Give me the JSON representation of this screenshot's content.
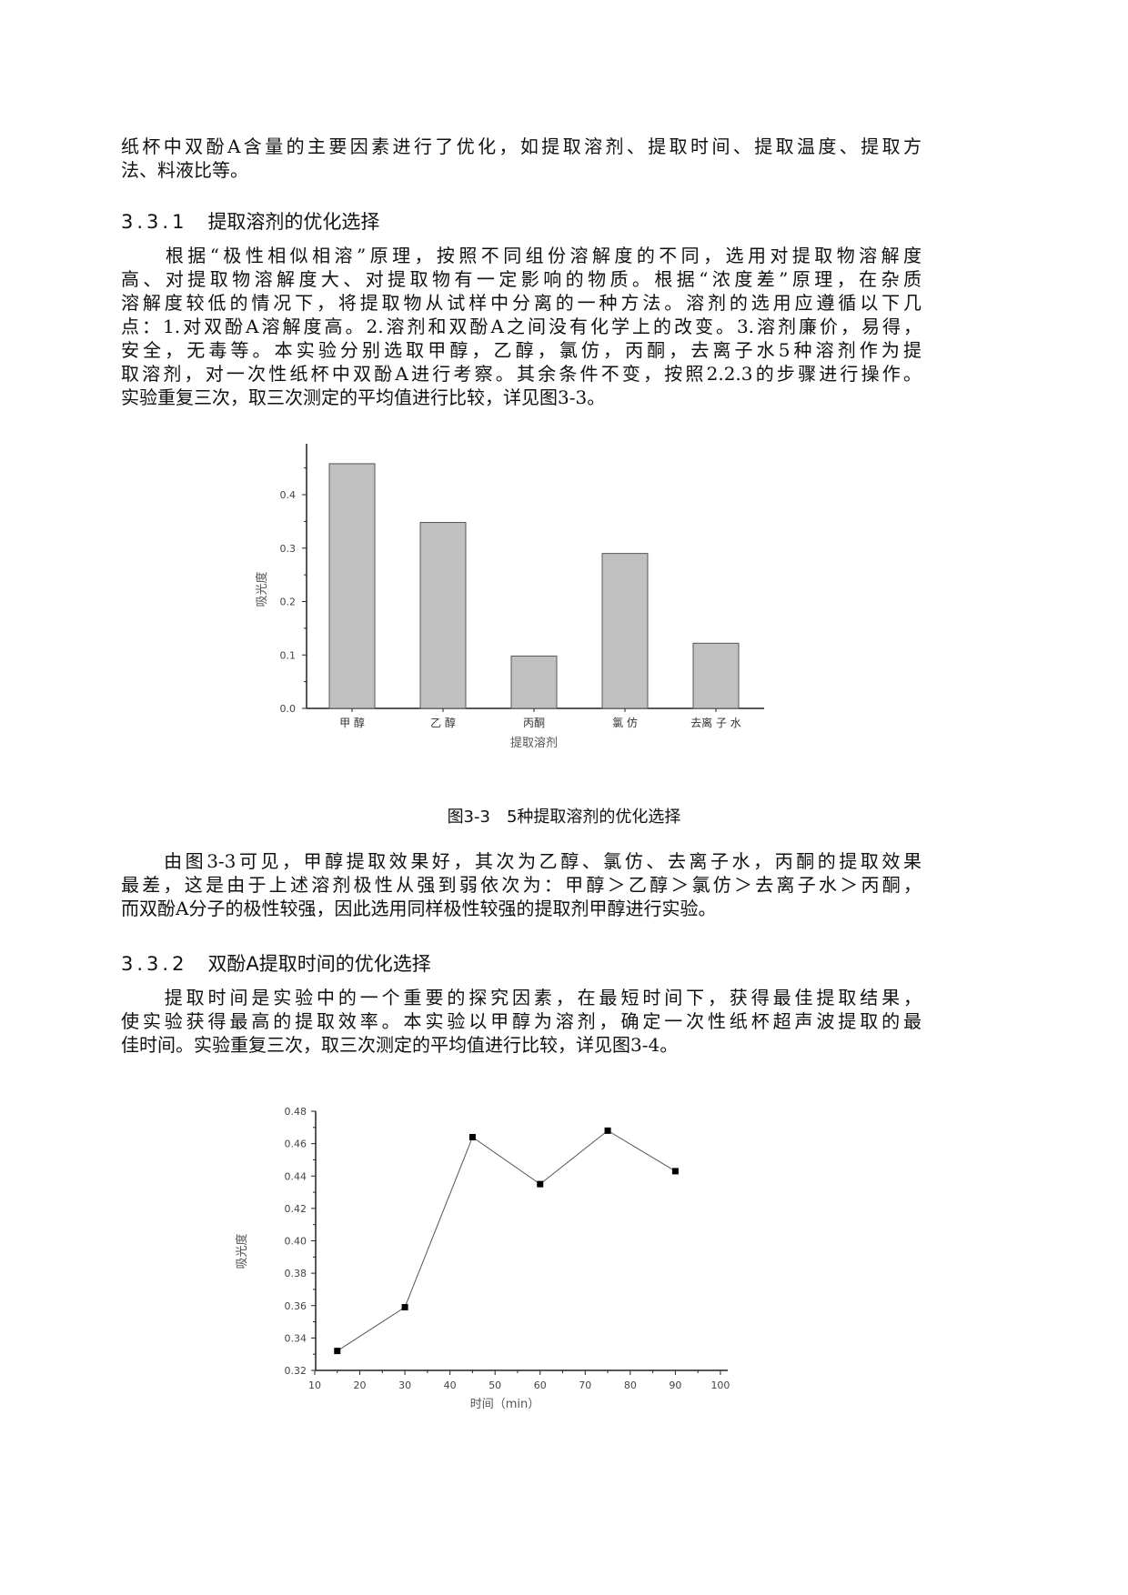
{
  "paragraphs": {
    "intro": [
      "纸杯中双酚A含量的主要因素进行了优化，如提取溶剂、提取时间、提取温度、提取方",
      "法、料液比等。"
    ],
    "solvent": [
      "　　根据“极性相似相溶”原理，按照不同组份溶解度的不同，选用对提取物溶解度",
      "高、对提取物溶解度大、对提取物有一定影响的物质。根据“浓度差”原理，在杂质",
      "溶解度较低的情况下，将提取物从试样中分离的一种方法。溶剂的选用应遵循以下几",
      "点：1.对双酚A溶解度高。2.溶剂和双酚A之间没有化学上的改变。3.溶剂廉价，易得，",
      "安全，无毒等。本实验分别选取甲醇，乙醇，氯仿，丙酮，去离子水5种溶剂作为提",
      "取溶剂，对一次性纸杯中双酚A进行考察。其余条件不变，按照2.2.3的步骤进行操作。",
      "实验重复三次，取三次测定的平均值进行比较，详见图3-3。"
    ],
    "analysis": [
      "　　由图3-3可见，甲醇提取效果好，其次为乙醇、氯仿、去离子水，丙酮的提取效果",
      "最差，这是由于上述溶剂极性从强到弱依次为：甲醇＞乙醇＞氯仿＞去离子水＞丙酮，",
      "而双酚A分子的极性较强，因此选用同样极性较强的提取剂甲醇进行实验。"
    ],
    "time": [
      "　　提取时间是实验中的一个重要的探究因素，在最短时间下，获得最佳提取结果，",
      "使实验获得最高的提取效率。本实验以甲醇为溶剂，确定一次性纸杯超声波提取的最",
      "佳时间。实验重复三次，取三次测定的平均值进行比较，详见图3-4。"
    ]
  },
  "headings": {
    "h331": {
      "num": "3.3.1",
      "title": "提取溶剂的优化选择"
    },
    "h332": {
      "num": "3.3.2",
      "title": "双酚A提取时间的优化选择"
    }
  },
  "figure_caption": "图3-3　5种提取溶剂的优化选择",
  "chart_data": [
    {
      "type": "bar",
      "categories": [
        "甲 醇",
        "乙 醇",
        "丙酮",
        "氯 仿",
        "去离 子 水"
      ],
      "values": [
        0.458,
        0.348,
        0.098,
        0.29,
        0.122
      ],
      "xlabel": "提取溶剂",
      "ylabel": "吸光度",
      "ylim": [
        0,
        0.48
      ],
      "yticks": [
        "0.0",
        "0.1",
        "0.2",
        "0.3",
        "0.4"
      ],
      "grid": false,
      "bar_color": "#c0c0c0"
    },
    {
      "type": "line",
      "x": [
        15,
        30,
        45,
        60,
        75,
        90
      ],
      "y": [
        0.332,
        0.359,
        0.464,
        0.435,
        0.468,
        0.443
      ],
      "xlabel": "时间（min）",
      "ylabel": "吸光度",
      "xlim": [
        10,
        100
      ],
      "ylim": [
        0.32,
        0.48
      ],
      "xticks": [
        "10",
        "20",
        "30",
        "40",
        "50",
        "60",
        "70",
        "80",
        "90",
        "100"
      ],
      "yticks": [
        "0.32",
        "0.34",
        "0.36",
        "0.38",
        "0.40",
        "0.42",
        "0.44",
        "0.46",
        "0.48"
      ],
      "grid": false,
      "marker": "square"
    }
  ]
}
